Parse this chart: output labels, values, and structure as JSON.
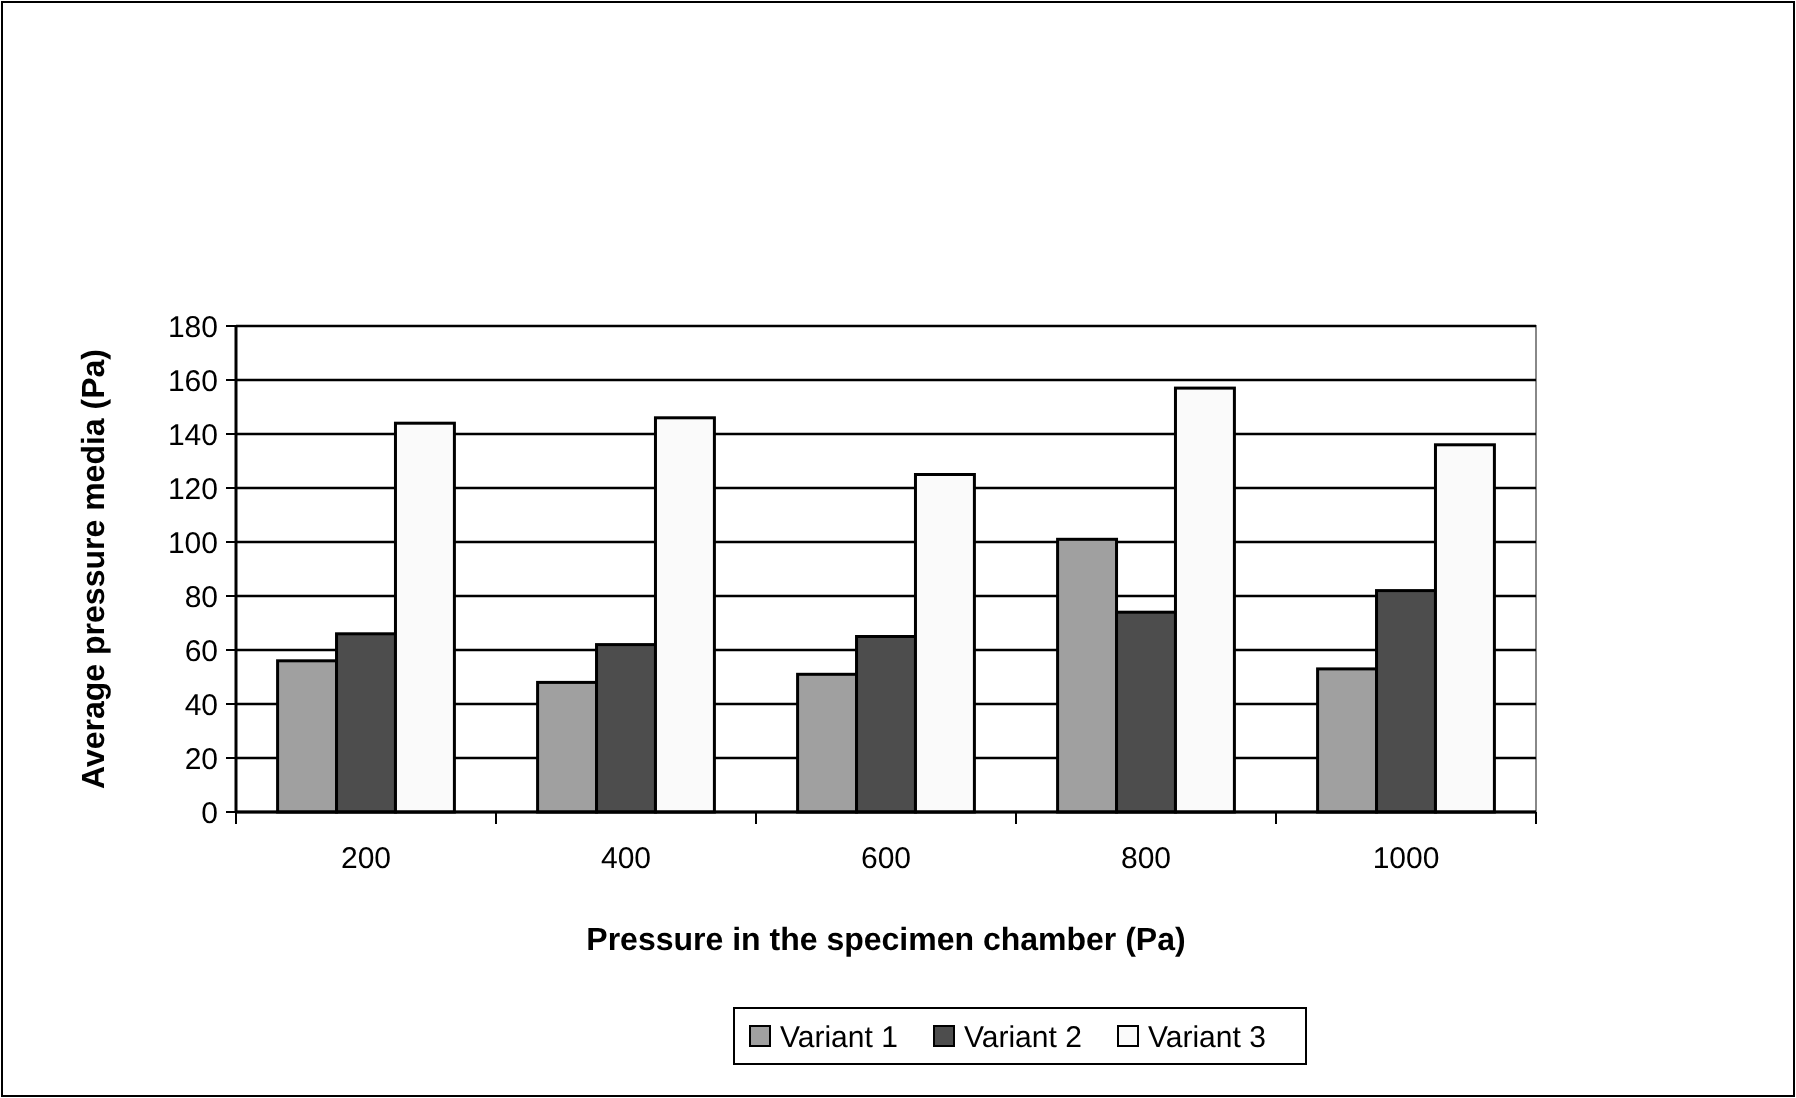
{
  "chart_data": {
    "type": "bar",
    "xlabel": "Pressure in the specimen chamber (Pa)",
    "ylabel": "Average pressure media (Pa)",
    "categories": [
      "200",
      "400",
      "600",
      "800",
      "1000"
    ],
    "series": [
      {
        "name": "Variant 1",
        "color": "#a0a0a0",
        "values": [
          56,
          48,
          51,
          101,
          53
        ]
      },
      {
        "name": "Variant 2",
        "color": "#4d4d4d",
        "values": [
          66,
          62,
          65,
          74,
          82
        ]
      },
      {
        "name": "Variant 3",
        "color": "#fafafa",
        "values": [
          144,
          146,
          125,
          157,
          136
        ]
      }
    ],
    "ylim": [
      0,
      180
    ],
    "yticks": [
      0,
      20,
      40,
      60,
      80,
      100,
      120,
      140,
      160,
      180
    ],
    "grid": "y",
    "legend": "bottom"
  }
}
